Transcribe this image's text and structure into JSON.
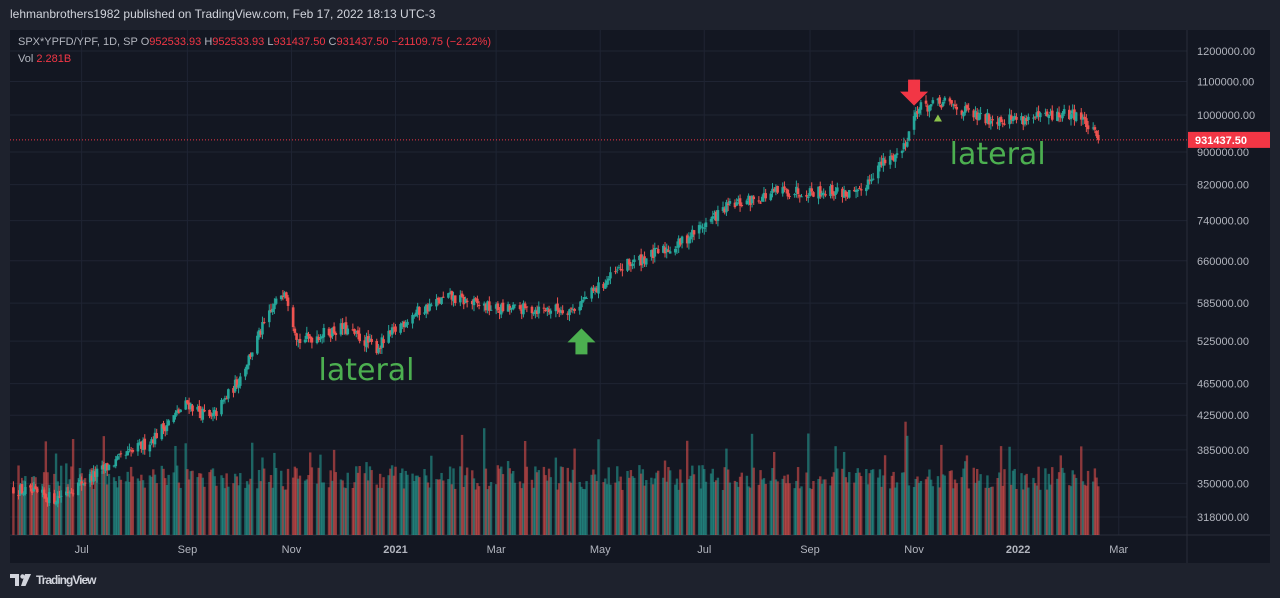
{
  "header": {
    "published_text": "lehmanbrothers1982 published on TradingView.com, Feb 17, 2022 18:13 UTC-3"
  },
  "legend": {
    "symbol": "SPX*YPFD/YPF, 1D, SP",
    "open_label": "O",
    "open": "952533.93",
    "high_label": "H",
    "high": "952533.93",
    "low_label": "L",
    "low": "931437.50",
    "close_label": "C",
    "close": "931437.50",
    "change": "−21109.75 (−2.22%)",
    "vol_label": "Vol",
    "vol": "2.281B"
  },
  "footer": {
    "logo": "TradingView",
    "logo_icon": "tradingview-logo-icon"
  },
  "colors": {
    "up": "#26a69a",
    "down": "#ef5350",
    "annotation_green": "#4caf50",
    "marker_red": "#f23645",
    "price_label_bg": "#f23645"
  },
  "chart_data": {
    "type": "candlestick",
    "scale": "log",
    "title": "SPX*YPFD/YPF, 1D, SP",
    "ylim": [
      300000,
      1260000
    ],
    "y_ticks": [
      1200000,
      1100000,
      1000000,
      900000,
      820000,
      740000,
      660000,
      585000,
      525000,
      465000,
      425000,
      385000,
      350000,
      318000
    ],
    "y_tick_labels": [
      "1200000.00",
      "1100000.00",
      "1000000.00",
      "900000.00",
      "820000.00",
      "740000.00",
      "660000.00",
      "585000.00",
      "525000.00",
      "465000.00",
      "425000.00",
      "385000.00",
      "350000.00",
      "318000.00"
    ],
    "x_tick_labels": [
      "Jul",
      "Sep",
      "Nov",
      "2021",
      "Mar",
      "May",
      "Jul",
      "Sep",
      "Nov",
      "2022",
      "Mar"
    ],
    "x_tick_bold": [
      false,
      false,
      false,
      true,
      false,
      false,
      false,
      false,
      false,
      true,
      false
    ],
    "last_price": 931437.5,
    "last_price_label": "931437.50",
    "anchors": [
      {
        "date": "2020-05-22",
        "price": 345000
      },
      {
        "date": "2020-06-15",
        "price": 335000
      },
      {
        "date": "2020-07-10",
        "price": 360000
      },
      {
        "date": "2020-08-10",
        "price": 395000
      },
      {
        "date": "2020-09-01",
        "price": 440000
      },
      {
        "date": "2020-09-15",
        "price": 420000
      },
      {
        "date": "2020-10-01",
        "price": 470000
      },
      {
        "date": "2020-10-15",
        "price": 545000
      },
      {
        "date": "2020-10-28",
        "price": 612000
      },
      {
        "date": "2020-11-05",
        "price": 525000
      },
      {
        "date": "2020-12-01",
        "price": 545000
      },
      {
        "date": "2020-12-21",
        "price": 515000
      },
      {
        "date": "2021-01-10",
        "price": 565000
      },
      {
        "date": "2021-02-01",
        "price": 595000
      },
      {
        "date": "2021-03-01",
        "price": 575000
      },
      {
        "date": "2021-04-15",
        "price": 575000
      },
      {
        "date": "2021-05-15",
        "price": 650000
      },
      {
        "date": "2021-06-15",
        "price": 690000
      },
      {
        "date": "2021-07-15",
        "price": 770000
      },
      {
        "date": "2021-08-15",
        "price": 805000
      },
      {
        "date": "2021-09-15",
        "price": 805000
      },
      {
        "date": "2021-09-29",
        "price": 795000
      },
      {
        "date": "2021-10-10",
        "price": 860000
      },
      {
        "date": "2021-10-25",
        "price": 905000
      },
      {
        "date": "2021-11-03",
        "price": 1020000
      },
      {
        "date": "2021-11-20",
        "price": 1035000
      },
      {
        "date": "2021-12-10",
        "price": 990000
      },
      {
        "date": "2022-01-10",
        "price": 990000
      },
      {
        "date": "2022-02-05",
        "price": 1005000
      },
      {
        "date": "2022-02-17",
        "price": 931437.5
      }
    ],
    "annotations": [
      {
        "type": "text",
        "text": "lateral",
        "date": "2020-12-15",
        "price": 470000
      },
      {
        "type": "text",
        "text": "lateral",
        "date": "2021-12-20",
        "price": 870000
      },
      {
        "type": "arrow-up",
        "date": "2021-04-20",
        "price": 520000
      },
      {
        "type": "arrow-down",
        "date": "2021-11-01",
        "price": 1075000
      },
      {
        "type": "triangle",
        "date": "2021-11-15",
        "price": 990000
      }
    ],
    "volume": {
      "label": "Vol",
      "last": "2.281B"
    }
  }
}
